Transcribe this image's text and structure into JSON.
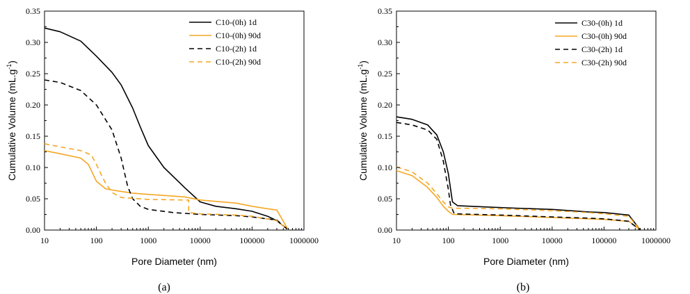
{
  "chart_data": [
    {
      "type": "line",
      "caption": "(a)",
      "xlabel": "Pore Diameter (nm)",
      "ylabel": "Cumulative Volume (mL.g",
      "ylabel_sup": "-1",
      "ylabel_tail": ")",
      "x_scale": "log",
      "xlim": [
        10,
        1000000
      ],
      "ylim": [
        0,
        0.35
      ],
      "x_ticks": [
        10,
        100,
        1000,
        10000,
        100000,
        1000000
      ],
      "x_tick_labels": [
        "10",
        "100",
        "1000",
        "10000",
        "100000",
        "1000000"
      ],
      "y_ticks": [
        0,
        0.05,
        0.1,
        0.15,
        0.2,
        0.25,
        0.3,
        0.35
      ],
      "y_tick_labels": [
        "0.00",
        "0.05",
        "0.10",
        "0.15",
        "0.20",
        "0.25",
        "0.30",
        "0.35"
      ],
      "legend_position": "top-right",
      "series": [
        {
          "name": "C10-(0h) 1d",
          "color": "#000000",
          "dash": "solid",
          "points": [
            [
              10,
              0.323
            ],
            [
              20,
              0.317
            ],
            [
              50,
              0.302
            ],
            [
              100,
              0.278
            ],
            [
              200,
              0.252
            ],
            [
              300,
              0.232
            ],
            [
              500,
              0.195
            ],
            [
              700,
              0.165
            ],
            [
              1000,
              0.135
            ],
            [
              2000,
              0.1
            ],
            [
              5000,
              0.068
            ],
            [
              10000,
              0.045
            ],
            [
              20000,
              0.038
            ],
            [
              50000,
              0.034
            ],
            [
              100000,
              0.03
            ],
            [
              200000,
              0.022
            ],
            [
              300000,
              0.015
            ],
            [
              500000,
              0
            ]
          ]
        },
        {
          "name": "C10-(0h) 90d",
          "color": "#f5a623",
          "dash": "solid",
          "points": [
            [
              10,
              0.127
            ],
            [
              20,
              0.122
            ],
            [
              50,
              0.115
            ],
            [
              70,
              0.105
            ],
            [
              100,
              0.078
            ],
            [
              150,
              0.066
            ],
            [
              200,
              0.064
            ],
            [
              500,
              0.059
            ],
            [
              1000,
              0.057
            ],
            [
              5000,
              0.053
            ],
            [
              10000,
              0.048
            ],
            [
              50000,
              0.043
            ],
            [
              100000,
              0.038
            ],
            [
              200000,
              0.034
            ],
            [
              300000,
              0.032
            ],
            [
              500000,
              0
            ]
          ]
        },
        {
          "name": "C10-(2h) 1d",
          "color": "#000000",
          "dash": "dashed",
          "points": [
            [
              10,
              0.24
            ],
            [
              20,
              0.236
            ],
            [
              50,
              0.223
            ],
            [
              100,
              0.2
            ],
            [
              200,
              0.16
            ],
            [
              300,
              0.115
            ],
            [
              400,
              0.07
            ],
            [
              500,
              0.05
            ],
            [
              700,
              0.038
            ],
            [
              1000,
              0.033
            ],
            [
              3000,
              0.028
            ],
            [
              10000,
              0.025
            ],
            [
              50000,
              0.023
            ],
            [
              100000,
              0.021
            ],
            [
              300000,
              0.016
            ],
            [
              500000,
              0
            ]
          ]
        },
        {
          "name": "C10-(2h) 90d",
          "color": "#f5a623",
          "dash": "dashed",
          "points": [
            [
              10,
              0.138
            ],
            [
              20,
              0.133
            ],
            [
              50,
              0.127
            ],
            [
              80,
              0.12
            ],
            [
              100,
              0.105
            ],
            [
              130,
              0.085
            ],
            [
              150,
              0.075
            ],
            [
              200,
              0.06
            ],
            [
              300,
              0.052
            ],
            [
              1000,
              0.049
            ],
            [
              5000,
              0.048
            ],
            [
              6000,
              0.048
            ],
            [
              6000,
              0.028
            ],
            [
              10000,
              0.026
            ],
            [
              50000,
              0.024
            ],
            [
              100000,
              0.022
            ],
            [
              300000,
              0.015
            ],
            [
              500000,
              0
            ]
          ]
        }
      ]
    },
    {
      "type": "line",
      "caption": "(b)",
      "xlabel": "Pore Diameter (nm)",
      "ylabel": "Cumulative Volume (mL.g",
      "ylabel_sup": "-1",
      "ylabel_tail": ")",
      "x_scale": "log",
      "xlim": [
        10,
        1000000
      ],
      "ylim": [
        0,
        0.35
      ],
      "x_ticks": [
        10,
        100,
        1000,
        10000,
        100000,
        1000000
      ],
      "x_tick_labels": [
        "10",
        "100",
        "1000",
        "10000",
        "100000",
        "1000000"
      ],
      "y_ticks": [
        0,
        0.05,
        0.1,
        0.15,
        0.2,
        0.25,
        0.3,
        0.35
      ],
      "y_tick_labels": [
        "0.00",
        "0.05",
        "0.10",
        "0.15",
        "0.20",
        "0.25",
        "0.30",
        "0.35"
      ],
      "legend_position": "top-right",
      "series": [
        {
          "name": "C30-(0h) 1d",
          "color": "#000000",
          "dash": "solid",
          "points": [
            [
              10,
              0.181
            ],
            [
              20,
              0.177
            ],
            [
              40,
              0.168
            ],
            [
              60,
              0.152
            ],
            [
              80,
              0.125
            ],
            [
              100,
              0.09
            ],
            [
              120,
              0.045
            ],
            [
              150,
              0.039
            ],
            [
              500,
              0.037
            ],
            [
              2000,
              0.035
            ],
            [
              10000,
              0.033
            ],
            [
              50000,
              0.029
            ],
            [
              100000,
              0.028
            ],
            [
              300000,
              0.024
            ],
            [
              500000,
              0
            ]
          ]
        },
        {
          "name": "C30-(0h) 90d",
          "color": "#f5a623",
          "dash": "solid",
          "points": [
            [
              10,
              0.095
            ],
            [
              20,
              0.087
            ],
            [
              40,
              0.068
            ],
            [
              60,
              0.052
            ],
            [
              80,
              0.038
            ],
            [
              100,
              0.03
            ],
            [
              120,
              0.025
            ],
            [
              1000,
              0.023
            ],
            [
              10000,
              0.02
            ],
            [
              50000,
              0.018
            ],
            [
              100000,
              0.017
            ],
            [
              300000,
              0.014
            ],
            [
              500000,
              0
            ]
          ]
        },
        {
          "name": "C30-(2h) 1d",
          "color": "#000000",
          "dash": "dashed",
          "points": [
            [
              10,
              0.172
            ],
            [
              20,
              0.168
            ],
            [
              40,
              0.16
            ],
            [
              60,
              0.145
            ],
            [
              80,
              0.11
            ],
            [
              100,
              0.065
            ],
            [
              110,
              0.04
            ],
            [
              130,
              0.026
            ],
            [
              1000,
              0.024
            ],
            [
              10000,
              0.021
            ],
            [
              50000,
              0.019
            ],
            [
              100000,
              0.018
            ],
            [
              300000,
              0.014
            ],
            [
              500000,
              0
            ]
          ]
        },
        {
          "name": "C30-(2h) 90d",
          "color": "#f5a623",
          "dash": "dashed",
          "points": [
            [
              10,
              0.101
            ],
            [
              20,
              0.093
            ],
            [
              40,
              0.075
            ],
            [
              60,
              0.058
            ],
            [
              80,
              0.045
            ],
            [
              100,
              0.037
            ],
            [
              120,
              0.035
            ],
            [
              1000,
              0.034
            ],
            [
              10000,
              0.031
            ],
            [
              50000,
              0.028
            ],
            [
              100000,
              0.026
            ],
            [
              300000,
              0.022
            ],
            [
              500000,
              0
            ]
          ]
        }
      ]
    }
  ]
}
